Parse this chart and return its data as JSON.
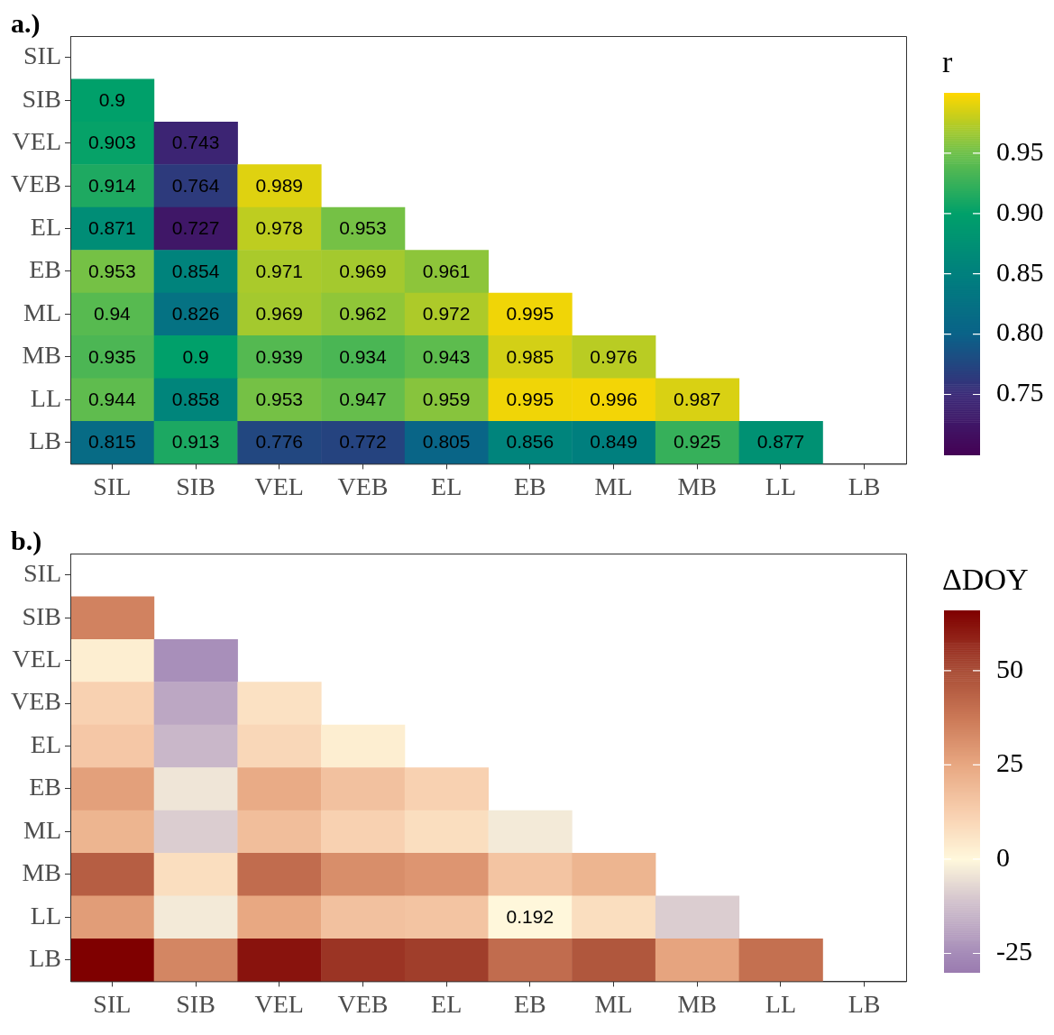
{
  "chart_data": [
    {
      "type": "heatmap",
      "title": "a.)",
      "clabel": "r",
      "data_labels": true,
      "categories": [
        "SIL",
        "SIB",
        "VEL",
        "VEB",
        "EL",
        "EB",
        "ML",
        "MB",
        "LL",
        "LB"
      ],
      "y_categories": [
        "SIL",
        "SIB",
        "VEL",
        "VEB",
        "EL",
        "EB",
        "ML",
        "MB",
        "LL",
        "LB"
      ],
      "cells": [
        [
          null,
          null,
          null,
          null,
          null,
          null,
          null,
          null,
          null,
          null
        ],
        [
          0.9,
          null,
          null,
          null,
          null,
          null,
          null,
          null,
          null,
          null
        ],
        [
          0.903,
          0.743,
          null,
          null,
          null,
          null,
          null,
          null,
          null,
          null
        ],
        [
          0.914,
          0.764,
          0.989,
          null,
          null,
          null,
          null,
          null,
          null,
          null
        ],
        [
          0.871,
          0.727,
          0.978,
          0.953,
          null,
          null,
          null,
          null,
          null,
          null
        ],
        [
          0.953,
          0.854,
          0.971,
          0.969,
          0.961,
          null,
          null,
          null,
          null,
          null
        ],
        [
          0.94,
          0.826,
          0.969,
          0.962,
          0.972,
          0.995,
          null,
          null,
          null,
          null
        ],
        [
          0.935,
          0.9,
          0.939,
          0.934,
          0.943,
          0.985,
          0.976,
          null,
          null,
          null
        ],
        [
          0.944,
          0.858,
          0.953,
          0.947,
          0.959,
          0.995,
          0.996,
          0.987,
          null,
          null
        ],
        [
          0.815,
          0.913,
          0.776,
          0.772,
          0.805,
          0.856,
          0.849,
          0.925,
          0.877,
          null
        ]
      ],
      "clim": [
        0.7,
        1.0
      ],
      "cticks": [
        0.75,
        {
          "value": 0.8,
          "label": "0.80"
        },
        0.85,
        {
          "value": 0.9,
          "label": "0.90"
        },
        0.95
      ]
    },
    {
      "type": "heatmap",
      "title": "b.)",
      "clabel": "ΔDOY",
      "categories": [
        "SIL",
        "SIB",
        "VEL",
        "VEB",
        "EL",
        "EB",
        "ML",
        "MB",
        "LL",
        "LB"
      ],
      "y_categories": [
        "SIL",
        "SIB",
        "VEL",
        "VEB",
        "EL",
        "EB",
        "ML",
        "MB",
        "LL",
        "LB"
      ],
      "cells": [
        [
          null,
          null,
          null,
          null,
          null,
          null,
          null,
          null,
          null,
          null
        ],
        [
          35,
          null,
          null,
          null,
          null,
          null,
          null,
          null,
          null,
          null
        ],
        [
          3,
          -24,
          null,
          null,
          null,
          null,
          null,
          null,
          null,
          null
        ],
        [
          12,
          -18,
          7,
          null,
          null,
          null,
          null,
          null,
          null,
          null
        ],
        [
          15,
          -14,
          10,
          3,
          null,
          null,
          null,
          null,
          null,
          null
        ],
        [
          27,
          -4,
          24,
          17,
          12,
          null,
          null,
          null,
          null,
          null
        ],
        [
          21,
          -9,
          18,
          12,
          8,
          -3,
          null,
          null,
          null,
          null
        ],
        [
          45,
          8,
          41,
          32,
          30,
          16,
          21,
          null,
          null,
          null
        ],
        [
          28,
          -3,
          25,
          17,
          16,
          0.192,
          8,
          -9,
          null,
          null
        ],
        [
          66,
          34,
          62,
          55,
          53,
          41,
          47,
          26,
          40,
          null
        ]
      ],
      "cell_labels": [
        [
          null,
          null,
          null,
          null,
          null,
          null,
          null,
          null,
          null,
          null
        ],
        [
          null,
          null,
          null,
          null,
          null,
          null,
          null,
          null,
          null,
          null
        ],
        [
          null,
          null,
          null,
          null,
          null,
          null,
          null,
          null,
          null,
          null
        ],
        [
          null,
          null,
          null,
          null,
          null,
          null,
          null,
          null,
          null,
          null
        ],
        [
          null,
          null,
          null,
          null,
          null,
          null,
          null,
          null,
          null,
          null
        ],
        [
          null,
          null,
          null,
          null,
          null,
          null,
          null,
          null,
          null,
          null
        ],
        [
          null,
          null,
          null,
          null,
          null,
          null,
          null,
          null,
          null,
          null
        ],
        [
          null,
          null,
          null,
          null,
          null,
          null,
          null,
          null,
          null,
          null
        ],
        [
          null,
          null,
          null,
          null,
          null,
          "0.192",
          null,
          null,
          null,
          null
        ],
        [
          null,
          null,
          null,
          null,
          null,
          null,
          null,
          null,
          null,
          null
        ]
      ],
      "clim": [
        -30,
        66
      ],
      "cticks": [
        -25,
        0,
        25,
        50
      ]
    }
  ]
}
